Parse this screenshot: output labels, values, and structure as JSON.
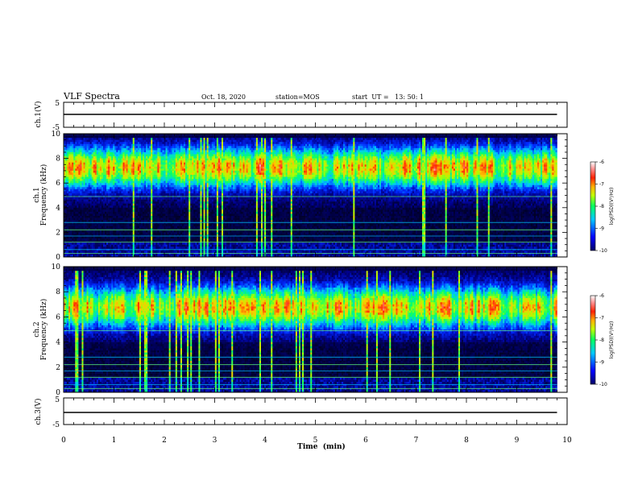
{
  "header": {
    "title": "VLF Spectra",
    "date": "Oct. 18, 2020",
    "station": "station=MOS",
    "start": "start  UT =   13: 50: 1"
  },
  "chart_data": [
    {
      "type": "line",
      "panel": "ch1-waveform",
      "ylabel": "ch.1(V)",
      "ylim": [
        -5,
        5
      ],
      "yticks": [
        "5",
        "-5"
      ],
      "series": [
        {
          "x": [
            0,
            9.8
          ],
          "values": [
            0,
            0
          ]
        }
      ]
    },
    {
      "type": "heatmap",
      "panel": "ch1-spectrogram",
      "ylabel": "ch.1\nFrequency  (kHz)",
      "ylim": [
        0,
        10
      ],
      "yticks": [
        "0",
        "2",
        "4",
        "6",
        "8",
        "10"
      ],
      "xlim": [
        0,
        10
      ],
      "data_end_min": 9.8,
      "emission_band_khz": [
        5,
        9.5
      ],
      "colorbar": {
        "label": "log(PSD)(V²/Hz)",
        "range": [
          -10,
          -6
        ],
        "ticks": [
          "-6",
          "-7",
          "-8",
          "-9",
          "-10"
        ]
      }
    },
    {
      "type": "heatmap",
      "panel": "ch2-spectrogram",
      "ylabel": "ch.2\nFrequency  (kHz)",
      "ylim": [
        0,
        10
      ],
      "yticks": [
        "0",
        "2",
        "4",
        "6",
        "8",
        "10"
      ],
      "xlim": [
        0,
        10
      ],
      "data_end_min": 9.8,
      "emission_band_khz": [
        4.5,
        9
      ],
      "colorbar": {
        "label": "log(PSD)(V²/Hz)",
        "range": [
          -10,
          -6
        ],
        "ticks": [
          "-6",
          "-7",
          "-8",
          "-9",
          "-10"
        ]
      }
    },
    {
      "type": "line",
      "panel": "ch3-waveform",
      "ylabel": "ch.3(V)",
      "ylim": [
        -5,
        5
      ],
      "yticks": [
        "5",
        "-5"
      ],
      "series": [
        {
          "x": [
            0,
            9.8
          ],
          "values": [
            0,
            0
          ]
        }
      ]
    }
  ],
  "xaxis": {
    "label": "Time  (min)",
    "ticks": [
      "0",
      "1",
      "2",
      "3",
      "4",
      "5",
      "6",
      "7",
      "8",
      "9",
      "10"
    ]
  },
  "colors": {
    "background": "#000033",
    "colormap": [
      "#000080",
      "#0000ff",
      "#00c8ff",
      "#00ff80",
      "#a0ff00",
      "#ffff00",
      "#ff8000",
      "#ff0000",
      "#ffffff"
    ]
  }
}
